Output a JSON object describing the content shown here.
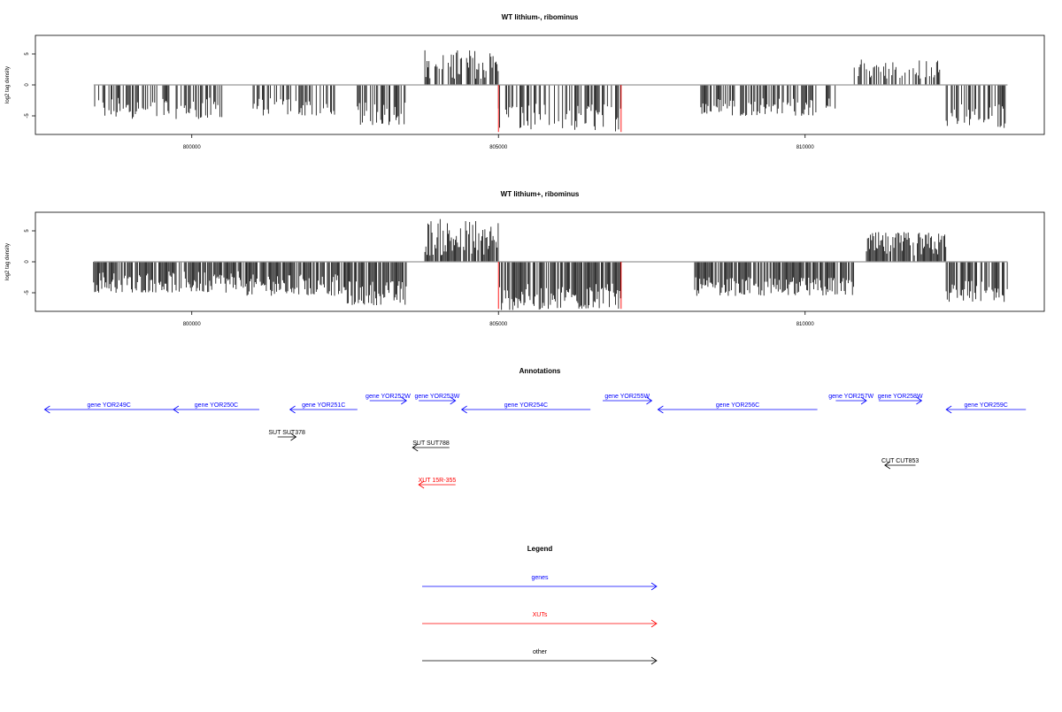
{
  "panels": [
    {
      "title": "WT lithium-, ribominus",
      "ylabel": "log2 tag density",
      "ylim": [
        -8,
        8
      ],
      "yticks": [
        -5,
        0,
        5
      ],
      "xticks": [
        800000,
        805000,
        810000
      ],
      "xlim": [
        797450,
        813900
      ],
      "highlight_lines": [
        805000,
        807000
      ]
    },
    {
      "title": "WT lithium+, ribominus",
      "ylabel": "log2 tag density",
      "ylim": [
        -8,
        8
      ],
      "yticks": [
        -5,
        0,
        5
      ],
      "xticks": [
        800000,
        805000,
        810000
      ],
      "xlim": [
        797450,
        813900
      ],
      "highlight_lines": [
        805000,
        807000
      ]
    }
  ],
  "chart_data": [
    {
      "type": "bar",
      "title": "WT lithium-, ribominus",
      "ylabel": "log2 tag density",
      "ylim": [
        -8,
        8
      ],
      "x_range": [
        798400,
        813300
      ],
      "series": [
        {
          "segments": [
            {
              "start": 798400,
              "end": 800500,
              "min": -5.5,
              "max": -2.0
            },
            {
              "start": 801000,
              "end": 802400,
              "min": -5.0,
              "max": -2.0
            },
            {
              "start": 802600,
              "end": 803500,
              "min": -6.5,
              "max": -2.5
            },
            {
              "start": 803800,
              "end": 805000,
              "min": 1.0,
              "max": 5.8
            },
            {
              "start": 805000,
              "end": 807000,
              "min": -7.5,
              "max": -3.0
            },
            {
              "start": 808300,
              "end": 810500,
              "min": -5.0,
              "max": -2.0
            },
            {
              "start": 810800,
              "end": 812200,
              "min": 1.0,
              "max": 4.2
            },
            {
              "start": 812300,
              "end": 813300,
              "min": -7.0,
              "max": -3.0
            }
          ]
        }
      ]
    },
    {
      "type": "bar",
      "title": "WT lithium+, ribominus",
      "ylabel": "log2 tag density",
      "ylim": [
        -8,
        8
      ],
      "x_range": [
        798400,
        813300
      ],
      "series": [
        {
          "segments": [
            {
              "start": 798400,
              "end": 800900,
              "min": -5.0,
              "max": -1.5
            },
            {
              "start": 800900,
              "end": 802500,
              "min": -5.5,
              "max": -2.0
            },
            {
              "start": 802500,
              "end": 803500,
              "min": -7.0,
              "max": -3.0
            },
            {
              "start": 803800,
              "end": 805000,
              "min": 1.0,
              "max": 7.0
            },
            {
              "start": 805000,
              "end": 807000,
              "min": -7.8,
              "max": -3.5
            },
            {
              "start": 808200,
              "end": 810800,
              "min": -5.5,
              "max": -2.5
            },
            {
              "start": 811000,
              "end": 812300,
              "min": 1.0,
              "max": 4.8
            },
            {
              "start": 812300,
              "end": 813300,
              "min": -6.5,
              "max": -3.0
            }
          ]
        }
      ]
    }
  ],
  "annotations": {
    "title": "Annotations",
    "tracks": [
      {
        "label": "gene YOR249C",
        "start": 797600,
        "end": 799700,
        "strand": "-",
        "color": "#0000ff"
      },
      {
        "label": "gene YOR250C",
        "start": 799700,
        "end": 801100,
        "strand": "-",
        "color": "#0000ff"
      },
      {
        "label": "gene YOR251C",
        "start": 801600,
        "end": 802700,
        "strand": "-",
        "color": "#0000ff"
      },
      {
        "label": "gene YOR252W",
        "start": 802900,
        "end": 803500,
        "strand": "+",
        "color": "#0000ff"
      },
      {
        "label": "gene YOR253W",
        "start": 803700,
        "end": 804300,
        "strand": "+",
        "color": "#0000ff"
      },
      {
        "label": "gene YOR254C",
        "start": 804400,
        "end": 806500,
        "strand": "-",
        "color": "#0000ff"
      },
      {
        "label": "gene YOR255W",
        "start": 806700,
        "end": 807500,
        "strand": "+",
        "color": "#0000ff"
      },
      {
        "label": "gene YOR256C",
        "start": 807600,
        "end": 810200,
        "strand": "-",
        "color": "#0000ff"
      },
      {
        "label": "gene YOR257W",
        "start": 810500,
        "end": 811000,
        "strand": "+",
        "color": "#0000ff"
      },
      {
        "label": "gene YOR258W",
        "start": 811200,
        "end": 811900,
        "strand": "+",
        "color": "#0000ff"
      },
      {
        "label": "gene YOR259C",
        "start": 812300,
        "end": 813600,
        "strand": "-",
        "color": "#0000ff"
      },
      {
        "label": "SUT SUT378",
        "start": 801400,
        "end": 801700,
        "strand": "+",
        "color": "#000000"
      },
      {
        "label": "SUT SUT788",
        "start": 803600,
        "end": 804200,
        "strand": "-",
        "color": "#000000"
      },
      {
        "label": "XUT 15R-355",
        "start": 803700,
        "end": 804300,
        "strand": "-",
        "color": "#ff0000"
      },
      {
        "label": "CUT CUT853",
        "start": 811300,
        "end": 811800,
        "strand": "-",
        "color": "#000000"
      }
    ]
  },
  "legend": {
    "title": "Legend",
    "items": [
      {
        "label": "genes",
        "color": "#0000ff"
      },
      {
        "label": "XUTs",
        "color": "#ff0000"
      },
      {
        "label": "other",
        "color": "#000000"
      }
    ]
  }
}
